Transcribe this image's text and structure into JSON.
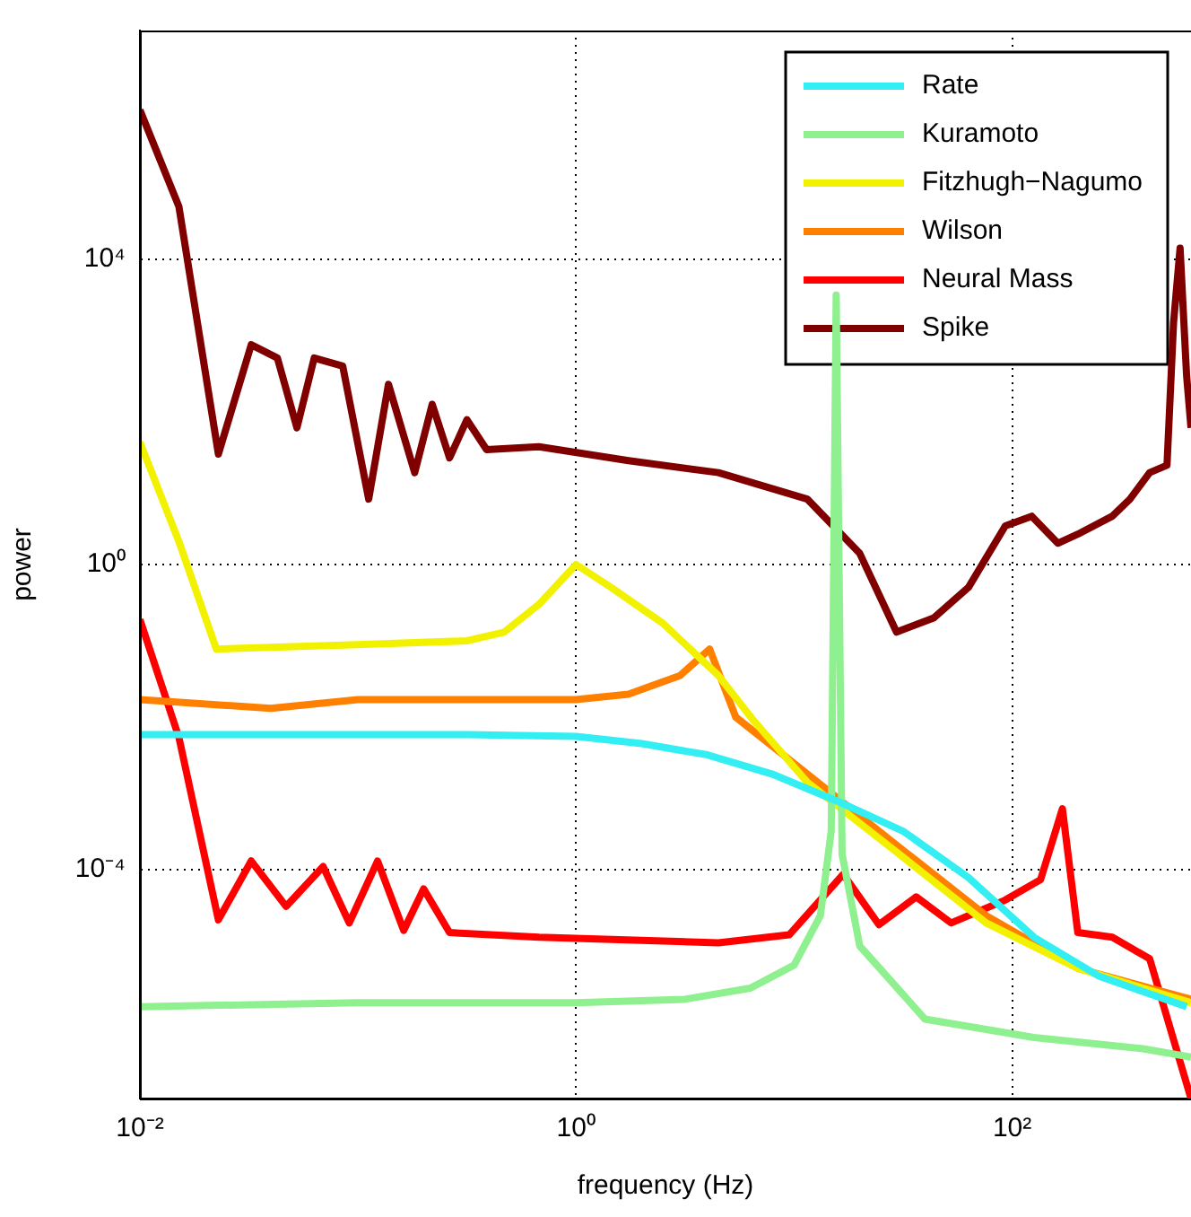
{
  "chart_data": {
    "type": "line",
    "xlabel": "frequency (Hz)",
    "ylabel": "power",
    "log": "xy",
    "grid": true,
    "legend": "top right",
    "xlim": [
      0.01,
      661
    ],
    "ylim": [
      1e-07,
      10000000.0
    ],
    "xticks": [
      {
        "value": 0.01,
        "label": "10⁻²"
      },
      {
        "value": 1,
        "label": "10⁰"
      },
      {
        "value": 100,
        "label": "10²"
      }
    ],
    "yticks": [
      {
        "value": 0.0001,
        "label": "10⁻⁴"
      },
      {
        "value": 1,
        "label": "10⁰"
      },
      {
        "value": 10000,
        "label": "10⁴"
      }
    ],
    "series": [
      {
        "name": "Rate",
        "color": "#33eef2",
        "x": [
          0.01,
          0.1,
          0.316,
          1,
          2,
          4,
          7.9,
          15.8,
          31.6,
          63,
          126,
          251,
          631
        ],
        "values": [
          0.0059,
          0.0059,
          0.0059,
          0.0056,
          0.0045,
          0.0032,
          0.0018,
          0.00079,
          0.00032,
          7.9e-05,
          1.3e-05,
          4e-06,
          1.6e-06
        ]
      },
      {
        "name": "Kuramoto",
        "color": "#8ef08e",
        "x": [
          0.01,
          0.1,
          1,
          3.16,
          6.3,
          10,
          13.2,
          14.8,
          15.6,
          16.6,
          20,
          39.8,
          126,
          398,
          661
        ],
        "values": [
          1.6e-06,
          1.8e-06,
          1.8e-06,
          2e-06,
          2.8e-06,
          5.6e-06,
          2.5e-05,
          0.00032,
          3400,
          0.00016,
          1e-05,
          1.1e-06,
          6.3e-07,
          4.5e-07,
          3.5e-07
        ]
      },
      {
        "name": "Fitzhugh−Nagumo",
        "color": "#f2f200",
        "x": [
          0.01,
          0.0151,
          0.0224,
          0.1,
          0.316,
          0.468,
          0.676,
          1,
          1.45,
          2.5,
          4.5,
          6.5,
          11.5,
          29.5,
          76,
          200,
          661
        ],
        "values": [
          40,
          2,
          0.078,
          0.089,
          0.1,
          0.13,
          0.3,
          1,
          0.5,
          0.17,
          0.035,
          0.0091,
          0.0014,
          0.00017,
          2e-05,
          5.1e-06,
          1.8e-06
        ]
      },
      {
        "name": "Wilson",
        "color": "#ff8000",
        "x": [
          0.01,
          0.0398,
          0.1,
          1,
          1.74,
          3.0,
          4.1,
          5.4,
          11.5,
          29.5,
          76,
          200,
          661
        ],
        "values": [
          0.017,
          0.013,
          0.017,
          0.017,
          0.02,
          0.035,
          0.078,
          0.01,
          0.0018,
          0.00021,
          2.5e-05,
          5.1e-06,
          2e-06
        ]
      },
      {
        "name": "Neural Mass",
        "color": "#ff0000",
        "x": [
          0.01,
          0.0151,
          0.0229,
          0.0324,
          0.0468,
          0.0692,
          0.0912,
          0.123,
          0.162,
          0.2,
          0.263,
          0.676,
          4.5,
          9.5,
          16.8,
          24.5,
          36.3,
          52.5,
          93,
          135,
          170,
          200,
          288,
          427,
          661
        ],
        "values": [
          0.19,
          0.0054,
          2.2e-05,
          0.00013,
          3.3e-05,
          0.00011,
          2e-05,
          0.00013,
          1.6e-05,
          5.6e-05,
          1.5e-05,
          1.3e-05,
          1.1e-05,
          1.4e-05,
          8.7e-05,
          1.9e-05,
          4.4e-05,
          2e-05,
          4e-05,
          7.4e-05,
          0.00063,
          1.5e-05,
          1.3e-05,
          6.8e-06,
          1e-07
        ]
      },
      {
        "name": "Spike",
        "color": "#800000",
        "x": [
          0.01,
          0.0151,
          0.0229,
          0.0324,
          0.0427,
          0.0525,
          0.063,
          0.0851,
          0.112,
          0.138,
          0.182,
          0.219,
          0.263,
          0.316,
          0.389,
          0.676,
          1.74,
          4.5,
          11.5,
          20,
          29.5,
          43.7,
          63,
          93,
          123,
          162,
          200,
          288,
          347,
          427,
          513,
          550,
          589,
          631,
          661
        ],
        "values": [
          910000.0,
          49000.0,
          28,
          760,
          510,
          62,
          510,
          400,
          7.2,
          230,
          16,
          126,
          25,
          79,
          32,
          35,
          23,
          16,
          7.2,
          1.4,
          0.13,
          0.2,
          0.5,
          3.2,
          4.3,
          1.9,
          2.5,
          4.3,
          7.2,
          16,
          20,
          1500,
          14000.0,
          300,
          62
        ]
      }
    ]
  }
}
